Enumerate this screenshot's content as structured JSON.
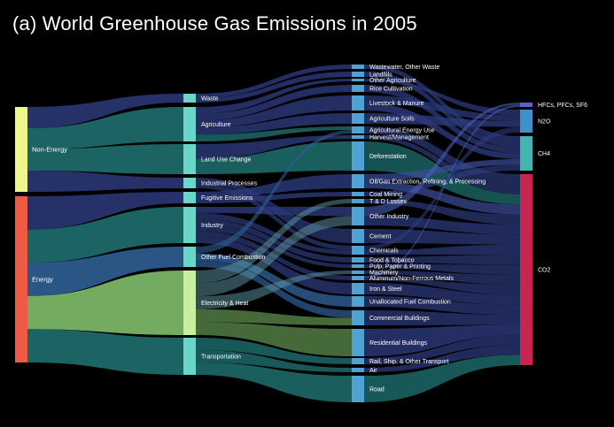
{
  "title": "(a) World Greenhouse Gas Emissions in 2005",
  "colors": {
    "non_energy": "#eef58a",
    "energy": "#ef5a44",
    "stage2": "#6ad6c8",
    "stage3": "#4fa3d4",
    "hfcs": "#5a62c4",
    "n2o": "#3e91c9",
    "ch4": "#43b5b0",
    "co2": "#c9244f",
    "flow_dark": "#2c3a7a",
    "flow_teal": "#1f6e6e",
    "flow_green": "#7fbf6a"
  },
  "levels": {
    "sources": [
      {
        "id": "non_energy",
        "label": "Non-Energy"
      },
      {
        "id": "energy",
        "label": "Energy"
      }
    ],
    "sectors": [
      {
        "id": "waste",
        "label": "Waste"
      },
      {
        "id": "agriculture",
        "label": "Agriculture"
      },
      {
        "id": "land_use",
        "label": "Land Use Change"
      },
      {
        "id": "industrial",
        "label": "Industrial Processes"
      },
      {
        "id": "fugitive",
        "label": "Fugitive Emissions"
      },
      {
        "id": "industry",
        "label": "Industry"
      },
      {
        "id": "other_fuel",
        "label": "Other Fuel Combustion"
      },
      {
        "id": "electricity",
        "label": "Electricity & Heat"
      },
      {
        "id": "transportation",
        "label": "Transportation"
      }
    ],
    "subsectors": [
      {
        "id": "wastewater",
        "label": "Wastewater, Other Waste"
      },
      {
        "id": "landfills",
        "label": "Landfills"
      },
      {
        "id": "other_ag",
        "label": "Other Agriculture"
      },
      {
        "id": "rice",
        "label": "Rice Cultivation"
      },
      {
        "id": "livestock",
        "label": "Livestock & Manure"
      },
      {
        "id": "ag_soils",
        "label": "Agriculture Soils"
      },
      {
        "id": "ag_energy",
        "label": "Agricultural Energy Use"
      },
      {
        "id": "harvest",
        "label": "Harvest/Management"
      },
      {
        "id": "deforestation",
        "label": "Deforestation"
      },
      {
        "id": "oil_gas",
        "label": "Oil/Gas Extraction, Refining, & Processing"
      },
      {
        "id": "coal",
        "label": "Coal Mining"
      },
      {
        "id": "td_losses",
        "label": "T & D Losses"
      },
      {
        "id": "other_industry",
        "label": "Other Industry"
      },
      {
        "id": "cement",
        "label": "Cement"
      },
      {
        "id": "chemicals",
        "label": "Chemicals"
      },
      {
        "id": "food",
        "label": "Food & Tobacco"
      },
      {
        "id": "pulp",
        "label": "Pulp, Paper & Printing"
      },
      {
        "id": "machinery",
        "label": "Machinery"
      },
      {
        "id": "aluminum",
        "label": "Aluminum/Non-Ferrous Metals"
      },
      {
        "id": "iron",
        "label": "Iron & Steel"
      },
      {
        "id": "unallocated",
        "label": "Unallocated Fuel Combustion"
      },
      {
        "id": "commercial",
        "label": "Commercial Buildings"
      },
      {
        "id": "residential",
        "label": "Residential Buildings"
      },
      {
        "id": "rail",
        "label": "Rail, Ship, & Other Transport"
      },
      {
        "id": "air",
        "label": "Air"
      },
      {
        "id": "road",
        "label": "Road"
      }
    ],
    "gases": [
      {
        "id": "hfcs",
        "label": "HFCs, PFCs, SF6"
      },
      {
        "id": "n2o",
        "label": "N2O"
      },
      {
        "id": "ch4",
        "label": "CH4"
      },
      {
        "id": "co2",
        "label": "CO2"
      }
    ]
  }
}
